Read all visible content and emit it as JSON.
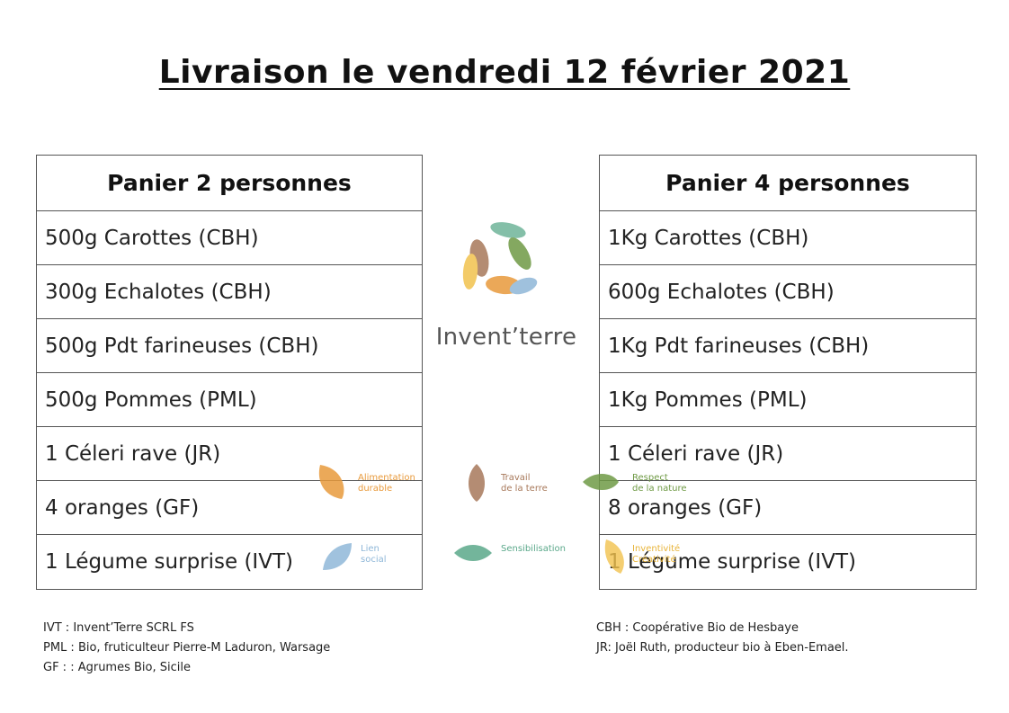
{
  "title": "Livraison le vendredi 12 février 2021",
  "brand": "Invent’terre",
  "basket_2": {
    "header": "Panier 2 personnes",
    "items": [
      "500g Carottes (CBH)",
      "300g Echalotes (CBH)",
      "500g Pdt farineuses (CBH)",
      "500g Pommes (PML)",
      "1 Céleri rave (JR)",
      "4 oranges (GF)",
      "1 Légume surprise (IVT)"
    ]
  },
  "basket_4": {
    "header": "Panier 4 personnes",
    "items": [
      "1Kg Carottes (CBH)",
      "600g Echalotes (CBH)",
      "1Kg Pdt farineuses (CBH)",
      "1Kg Pommes (PML)",
      "1 Céleri rave (JR)",
      "8 oranges (GF)",
      "1 Légume surprise (IVT)"
    ]
  },
  "values": [
    {
      "label": "Alimentation\ndurable",
      "color": "#e89a3c",
      "icon": "orange-leaf-icon"
    },
    {
      "label": "Travail\nde la terre",
      "color": "#a7785a",
      "icon": "brown-leaf-icon"
    },
    {
      "label": "Respect\nde la nature",
      "color": "#6f9a45",
      "icon": "green-leaf-icon"
    },
    {
      "label": "Lien\nsocial",
      "color": "#8fb7d8",
      "icon": "blue-leaf-icon"
    },
    {
      "label": "Sensibilisation",
      "color": "#5aa88a",
      "icon": "teal-leaf-icon"
    },
    {
      "label": "Inventivité\nCréativité",
      "color": "#f1c24e",
      "icon": "yellow-leaf-icon"
    }
  ],
  "notes_left": [
    "IVT : Invent’Terre SCRL FS",
    "PML : Bio, fruticulteur Pierre-M Laduron, Warsage",
    "GF : : Agrumes Bio, Sicile"
  ],
  "notes_right": [
    "CBH : Coopérative Bio de Hesbaye",
    "JR: Joël Ruth, producteur bio à Eben-Emael."
  ]
}
